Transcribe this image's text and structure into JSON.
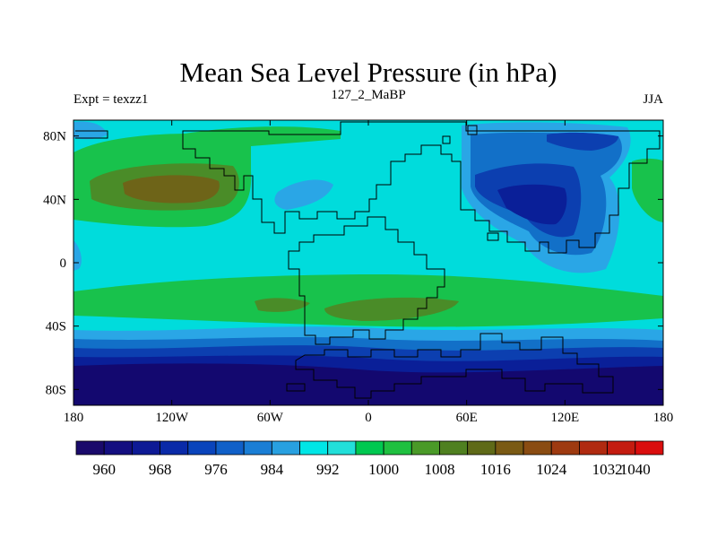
{
  "title": "Mean Sea Level Pressure (in hPa)",
  "subtitle_left": "Expt = texzz1",
  "subtitle_center": "127_2_MaBP",
  "subtitle_right": "JJA",
  "x_ticks": [
    {
      "label": "180",
      "lon": -180
    },
    {
      "label": "120W",
      "lon": -120
    },
    {
      "label": "60W",
      "lon": -60
    },
    {
      "label": "0",
      "lon": 0
    },
    {
      "label": "60E",
      "lon": 60
    },
    {
      "label": "120E",
      "lon": 120
    },
    {
      "label": "180",
      "lon": 180
    }
  ],
  "y_ticks": [
    {
      "label": "80N",
      "lat": 80
    },
    {
      "label": "40N",
      "lat": 40
    },
    {
      "label": "0",
      "lat": 0
    },
    {
      "label": "40S",
      "lat": -40
    },
    {
      "label": "80S",
      "lat": -80
    }
  ],
  "colorbar": {
    "colors": [
      "#1a0a6b",
      "#140f80",
      "#0e1a95",
      "#0a2aa8",
      "#0a44bb",
      "#1060c8",
      "#1a7ed5",
      "#28a0e0",
      "#00e6e6",
      "#22dfd9",
      "#00c850",
      "#1fc040",
      "#4a9a28",
      "#4f8020",
      "#5f6a18",
      "#7a5a14",
      "#8a4c12",
      "#9e3a10",
      "#b02a10",
      "#c41c10",
      "#da0e0e"
    ],
    "labels": [
      {
        "label": "960",
        "index": 1
      },
      {
        "label": "968",
        "index": 3
      },
      {
        "label": "976",
        "index": 5
      },
      {
        "label": "984",
        "index": 7
      },
      {
        "label": "992",
        "index": 9
      },
      {
        "label": "1000",
        "index": 11
      },
      {
        "label": "1008",
        "index": 13
      },
      {
        "label": "1016",
        "index": 15
      },
      {
        "label": "1024",
        "index": 17
      },
      {
        "label": "1032",
        "index": 19
      },
      {
        "label": "1040",
        "index": 20
      }
    ]
  },
  "palette": {
    "background": "#00dcdc",
    "light_blue": "#2aa6e6",
    "mid_blue": "#1270c8",
    "dark_blue": "#0c3fb0",
    "navy": "#0a1f98",
    "deep_navy": "#13086f",
    "green": "#18c24c",
    "olive": "#4a8c28",
    "brown": "#6e6418"
  }
}
